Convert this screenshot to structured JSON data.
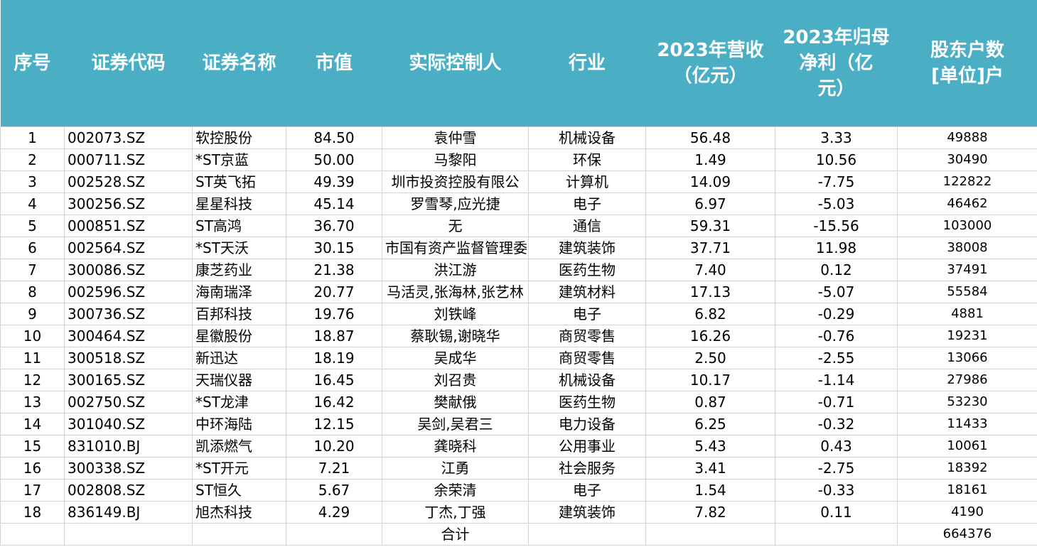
{
  "table": {
    "header": [
      [
        "序号"
      ],
      [
        "证券代码"
      ],
      [
        "证券名称"
      ],
      [
        "市值"
      ],
      [
        "实际控制人"
      ],
      [
        "行业"
      ],
      [
        "2023年营收",
        "（亿元）"
      ],
      [
        "2023年归母",
        "净利（亿",
        "元）"
      ],
      [
        "股东户数",
        "[单位]户"
      ]
    ],
    "rows": [
      [
        "1",
        "002073.SZ",
        "软控股份",
        "84.50",
        "袁仲雪",
        "机械设备",
        "56.48",
        "3.33",
        "49888"
      ],
      [
        "2",
        "000711.SZ",
        "*ST京蓝",
        "50.00",
        "马黎阳",
        "环保",
        "1.49",
        "10.56",
        "30490"
      ],
      [
        "3",
        "002528.SZ",
        "ST英飞拓",
        "49.39",
        "圳市投资控股有限公",
        "计算机",
        "14.09",
        "-7.75",
        "122822"
      ],
      [
        "4",
        "300256.SZ",
        "星星科技",
        "45.14",
        "罗雪琴,应光捷",
        "电子",
        "6.97",
        "-5.03",
        "46462"
      ],
      [
        "5",
        "000851.SZ",
        "ST高鸿",
        "36.70",
        "无",
        "通信",
        "59.31",
        "-15.56",
        "103000"
      ],
      [
        "6",
        "002564.SZ",
        "*ST天沃",
        "30.15",
        "市国有资产监督管理委",
        "建筑装饰",
        "37.71",
        "11.98",
        "38008"
      ],
      [
        "7",
        "300086.SZ",
        "康芝药业",
        "21.38",
        "洪江游",
        "医药生物",
        "7.40",
        "0.12",
        "37491"
      ],
      [
        "8",
        "002596.SZ",
        "海南瑞泽",
        "20.77",
        "马活灵,张海林,张艺林",
        "建筑材料",
        "17.13",
        "-5.07",
        "55584"
      ],
      [
        "9",
        "300736.SZ",
        "百邦科技",
        "19.76",
        "刘铁峰",
        "电子",
        "6.82",
        "-0.29",
        "4881"
      ],
      [
        "10",
        "300464.SZ",
        "星徽股份",
        "18.87",
        "蔡耿锡,谢晓华",
        "商贸零售",
        "16.26",
        "-0.76",
        "19231"
      ],
      [
        "11",
        "300518.SZ",
        "新迅达",
        "18.19",
        "吴成华",
        "商贸零售",
        "2.50",
        "-2.55",
        "13066"
      ],
      [
        "12",
        "300165.SZ",
        "天瑞仪器",
        "16.45",
        "刘召贵",
        "机械设备",
        "10.17",
        "-1.14",
        "27986"
      ],
      [
        "13",
        "002750.SZ",
        "*ST龙津",
        "16.42",
        "樊献俄",
        "医药生物",
        "0.87",
        "-0.71",
        "53230"
      ],
      [
        "14",
        "301040.SZ",
        "中环海陆",
        "12.15",
        "吴剑,吴君三",
        "电力设备",
        "6.25",
        "-0.32",
        "11433"
      ],
      [
        "15",
        "831010.BJ",
        "凯添燃气",
        "10.20",
        "龚晓科",
        "公用事业",
        "5.43",
        "0.43",
        "10061"
      ],
      [
        "16",
        "300338.SZ",
        "*ST开元",
        "7.21",
        "江勇",
        "社会服务",
        "3.41",
        "-2.75",
        "18392"
      ],
      [
        "17",
        "002808.SZ",
        "ST恒久",
        "5.67",
        "余荣清",
        "电子",
        "1.54",
        "-0.33",
        "18161"
      ],
      [
        "18",
        "836149.BJ",
        "旭杰科技",
        "4.29",
        "丁杰,丁强",
        "建筑装饰",
        "7.82",
        "0.11",
        "4190"
      ]
    ],
    "total": {
      "label": "合计",
      "holders": "664376"
    }
  }
}
